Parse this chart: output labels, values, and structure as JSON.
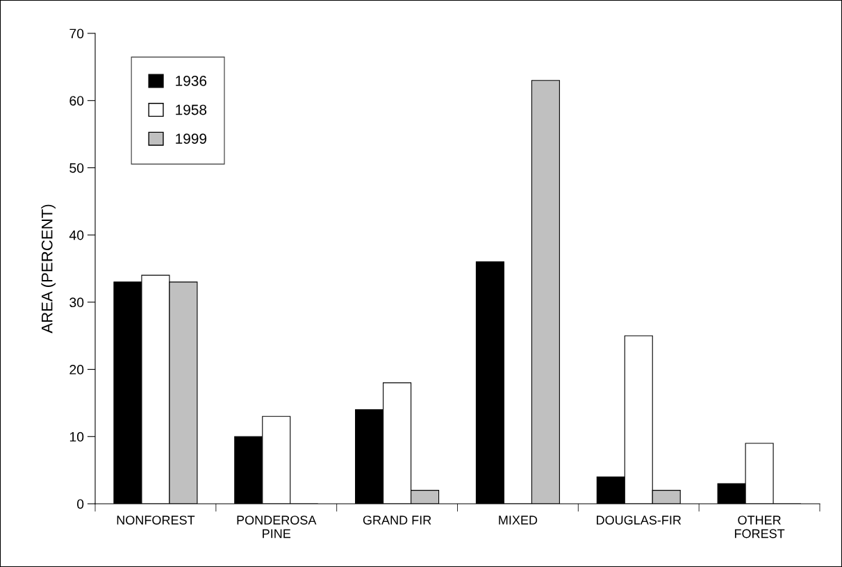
{
  "chart_data": {
    "type": "bar",
    "ylabel": "AREA (PERCENT)",
    "categories": [
      "NONFOREST",
      "PONDEROSA\nPINE",
      "GRAND FIR",
      "MIXED",
      "DOUGLAS-FIR",
      "OTHER\nFOREST"
    ],
    "series": [
      {
        "name": "1936",
        "color": "#000000",
        "values": [
          33,
          10,
          14,
          36,
          4,
          3
        ]
      },
      {
        "name": "1958",
        "color": "#ffffff",
        "values": [
          34,
          13,
          18,
          0,
          25,
          9
        ]
      },
      {
        "name": "1999",
        "color": "#c0c0c0",
        "values": [
          33,
          0,
          2,
          63,
          2,
          0
        ]
      }
    ],
    "ylim": [
      0,
      70
    ],
    "yticks": [
      0,
      10,
      20,
      30,
      40,
      50,
      60,
      70
    ],
    "grid": false,
    "legend": "top left"
  }
}
